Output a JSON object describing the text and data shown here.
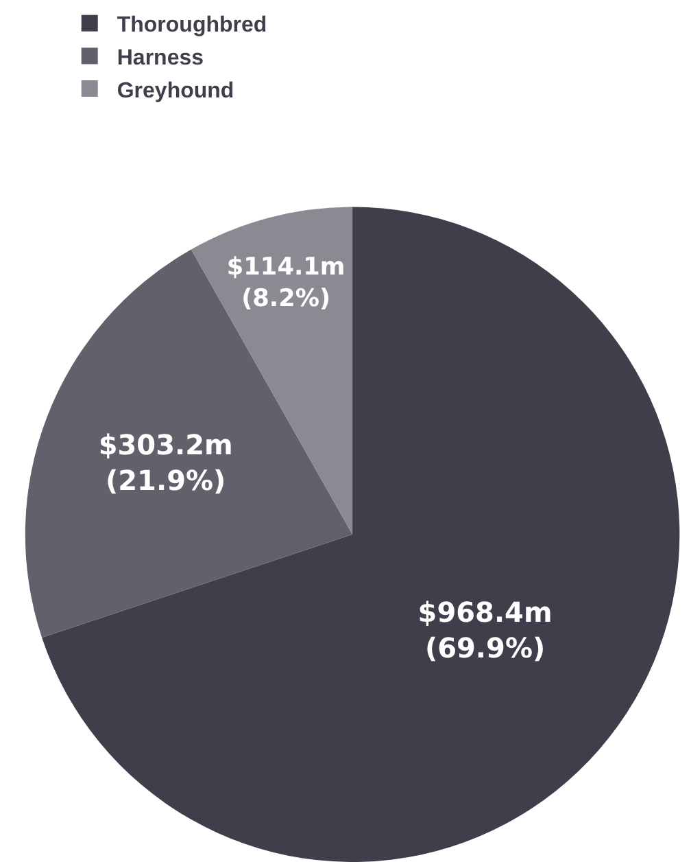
{
  "chart_data": {
    "type": "pie",
    "categories": [
      "Thoroughbred",
      "Harness",
      "Greyhound"
    ],
    "values": [
      69.9,
      21.9,
      8.2
    ],
    "colors": [
      "#3f3e4a",
      "#62616b",
      "#8b8a93"
    ],
    "value_labels": [
      "$968.4m\n(69.9%)",
      "$303.2m\n(21.9%)",
      "$114.1m\n(8.2%)"
    ],
    "legend": "top left"
  }
}
